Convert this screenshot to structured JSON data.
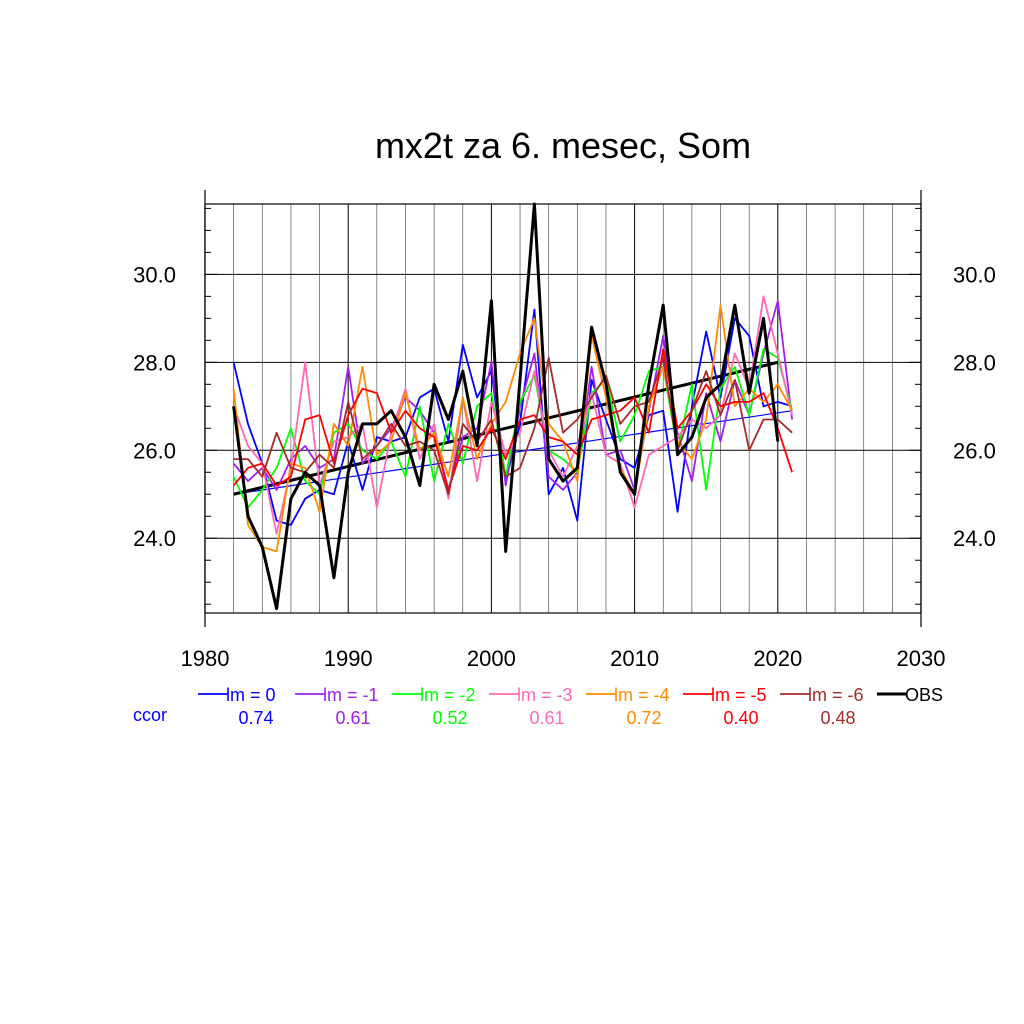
{
  "chart_data": {
    "type": "line",
    "title": "mx2t za 6. mesec, Som",
    "xlabel": "",
    "ylabel": "",
    "xlim": [
      1980,
      2030
    ],
    "ylim": [
      22.3,
      31.6
    ],
    "xticks": [
      "1980",
      "1990",
      "2000",
      "2010",
      "2020",
      "2030"
    ],
    "yticks": [
      "24.0",
      "26.0",
      "28.0",
      "30.0"
    ],
    "grid": true,
    "legend_position": "bottom",
    "ccor_label": "ccor",
    "series": [
      {
        "name": "lm = 0",
        "color": "#0000ff",
        "ccor": "0.74",
        "x": [
          1982,
          1983,
          1984,
          1985,
          1986,
          1987,
          1988,
          1989,
          1990,
          1991,
          1992,
          1993,
          1994,
          1995,
          1996,
          1997,
          1998,
          1999,
          2000,
          2001,
          2002,
          2003,
          2004,
          2005,
          2006,
          2007,
          2008,
          2009,
          2010,
          2011,
          2012,
          2013,
          2014,
          2015,
          2016,
          2017,
          2018,
          2019,
          2020,
          2021
        ],
        "values": [
          28.0,
          26.6,
          25.7,
          24.4,
          24.3,
          24.9,
          25.1,
          25.0,
          26.2,
          25.1,
          26.3,
          26.2,
          26.3,
          27.2,
          27.4,
          26.2,
          28.4,
          27.2,
          27.8,
          25.3,
          26.6,
          29.2,
          25.0,
          25.6,
          24.4,
          27.6,
          26.7,
          25.8,
          25.6,
          26.8,
          26.9,
          24.6,
          27.0,
          28.7,
          27.2,
          29.0,
          28.6,
          27.0,
          27.1,
          27.0
        ]
      },
      {
        "name": "lm = -1",
        "color": "#a020f0",
        "ccor": "0.61",
        "x": [
          1982,
          1983,
          1984,
          1985,
          1986,
          1987,
          1988,
          1989,
          1990,
          1991,
          1992,
          1993,
          1994,
          1995,
          1996,
          1997,
          1998,
          1999,
          2000,
          2001,
          2002,
          2003,
          2004,
          2005,
          2006,
          2007,
          2008,
          2009,
          2010,
          2011,
          2012,
          2013,
          2014,
          2015,
          2016,
          2017,
          2018,
          2019,
          2020,
          2021
        ],
        "values": [
          25.7,
          25.3,
          25.6,
          25.1,
          25.8,
          26.1,
          25.6,
          25.8,
          27.9,
          25.7,
          26.1,
          26.5,
          27.2,
          26.9,
          26.4,
          25.1,
          26.3,
          26.5,
          28.0,
          25.2,
          27.0,
          28.2,
          25.4,
          25.1,
          25.5,
          27.9,
          25.9,
          26.0,
          25.1,
          26.9,
          28.6,
          26.4,
          25.3,
          27.3,
          26.2,
          27.6,
          26.8,
          28.2,
          29.4,
          26.7
        ]
      },
      {
        "name": "lm = -2",
        "color": "#00ff00",
        "ccor": "0.52",
        "x": [
          1982,
          1983,
          1984,
          1985,
          1986,
          1987,
          1988,
          1989,
          1990,
          1991,
          1992,
          1993,
          1994,
          1995,
          1996,
          1997,
          1998,
          1999,
          2000,
          2001,
          2002,
          2003,
          2004,
          2005,
          2006,
          2007,
          2008,
          2009,
          2010,
          2011,
          2012,
          2013,
          2014,
          2015,
          2016,
          2017,
          2018,
          2019,
          2020,
          2021
        ],
        "values": [
          25.4,
          24.7,
          25.1,
          25.6,
          26.5,
          25.3,
          25.0,
          26.4,
          26.6,
          26.0,
          25.8,
          26.2,
          25.4,
          27.0,
          25.3,
          26.6,
          25.7,
          27.0,
          27.3,
          25.4,
          27.1,
          27.7,
          26.0,
          25.8,
          25.5,
          27.3,
          27.6,
          26.2,
          26.8,
          27.8,
          27.9,
          26.0,
          27.5,
          25.1,
          27.4,
          27.9,
          26.8,
          28.3,
          28.1,
          26.9
        ]
      },
      {
        "name": "lm = -3",
        "color": "#ff69b4",
        "ccor": "0.61",
        "x": [
          1982,
          1983,
          1984,
          1985,
          1986,
          1987,
          1988,
          1989,
          1990,
          1991,
          1992,
          1993,
          1994,
          1995,
          1996,
          1997,
          1998,
          1999,
          2000,
          2001,
          2002,
          2003,
          2004,
          2005,
          2006,
          2007,
          2008,
          2009,
          2010,
          2011,
          2012,
          2013,
          2014,
          2015,
          2016,
          2017,
          2018,
          2019,
          2020,
          2021
        ],
        "values": [
          27.0,
          26.1,
          25.7,
          24.1,
          25.6,
          28.0,
          25.2,
          26.2,
          26.3,
          26.6,
          24.7,
          26.4,
          27.4,
          25.8,
          26.6,
          24.9,
          27.2,
          25.3,
          27.1,
          25.9,
          26.4,
          27.8,
          26.0,
          25.4,
          26.1,
          27.3,
          25.9,
          25.7,
          24.7,
          25.9,
          26.1,
          26.3,
          26.7,
          26.5,
          26.8,
          28.2,
          27.4,
          29.5,
          28.2,
          26.8
        ]
      },
      {
        "name": "lm = -4",
        "color": "#ff8c00",
        "ccor": "0.72",
        "x": [
          1982,
          1983,
          1984,
          1985,
          1986,
          1987,
          1988,
          1989,
          1990,
          1991,
          1992,
          1993,
          1994,
          1995,
          1996,
          1997,
          1998,
          1999,
          2000,
          2001,
          2002,
          2003,
          2004,
          2005,
          2006,
          2007,
          2008,
          2009,
          2010,
          2011,
          2012,
          2013,
          2014,
          2015,
          2016,
          2017,
          2018,
          2019,
          2020,
          2021
        ],
        "values": [
          27.4,
          24.3,
          23.8,
          23.7,
          25.7,
          25.6,
          24.6,
          26.6,
          26.1,
          27.9,
          25.9,
          26.2,
          27.3,
          26.0,
          26.4,
          25.4,
          27.2,
          25.8,
          26.6,
          27.1,
          28.2,
          29.0,
          26.6,
          26.2,
          25.3,
          28.6,
          27.2,
          25.6,
          25.0,
          27.0,
          27.9,
          26.2,
          25.8,
          26.7,
          29.3,
          27.0,
          27.4,
          27.1,
          27.5,
          26.9
        ]
      },
      {
        "name": "lm = -5",
        "color": "#ff0000",
        "ccor": "0.40",
        "x": [
          1982,
          1983,
          1984,
          1985,
          1986,
          1987,
          1988,
          1989,
          1990,
          1991,
          1992,
          1993,
          1994,
          1995,
          1996,
          1997,
          1998,
          1999,
          2000,
          2001,
          2002,
          2003,
          2004,
          2005,
          2006,
          2007,
          2008,
          2009,
          2010,
          2011,
          2012,
          2013,
          2014,
          2015,
          2016,
          2017,
          2018,
          2019,
          2020,
          2021
        ],
        "values": [
          25.2,
          25.6,
          25.7,
          25.2,
          25.4,
          26.7,
          26.8,
          25.7,
          26.8,
          27.4,
          27.3,
          26.4,
          26.9,
          26.5,
          26.3,
          25.1,
          26.1,
          26.0,
          26.5,
          25.8,
          26.7,
          26.8,
          26.3,
          26.2,
          25.9,
          26.7,
          26.8,
          26.9,
          27.2,
          26.4,
          28.3,
          26.5,
          26.9,
          27.5,
          27.0,
          27.1,
          27.1,
          27.3,
          26.5,
          25.5
        ]
      },
      {
        "name": "lm = -6",
        "color": "#a52a2a",
        "ccor": "0.48",
        "x": [
          1982,
          1983,
          1984,
          1985,
          1986,
          1987,
          1988,
          1989,
          1990,
          1991,
          1992,
          1993,
          1994,
          1995,
          1996,
          1997,
          1998,
          1999,
          2000,
          2001,
          2002,
          2003,
          2004,
          2005,
          2006,
          2007,
          2008,
          2009,
          2010,
          2011,
          2012,
          2013,
          2014,
          2015,
          2016,
          2017,
          2018,
          2019,
          2020,
          2021
        ],
        "values": [
          25.8,
          25.8,
          25.4,
          26.4,
          25.6,
          25.5,
          25.9,
          25.6,
          27.1,
          25.8,
          26.1,
          26.6,
          26.1,
          26.2,
          26.0,
          25.0,
          26.6,
          26.2,
          26.7,
          25.4,
          25.6,
          26.5,
          28.1,
          26.4,
          26.7,
          27.2,
          27.7,
          26.6,
          27.0,
          27.1,
          28.1,
          26.0,
          26.9,
          27.8,
          26.8,
          27.6,
          26.0,
          26.7,
          26.7,
          26.4
        ]
      },
      {
        "name": "OBS",
        "color": "#000000",
        "ccor": "",
        "x": [
          1982,
          1983,
          1984,
          1985,
          1986,
          1987,
          1988,
          1989,
          1990,
          1991,
          1992,
          1993,
          1994,
          1995,
          1996,
          1997,
          1998,
          1999,
          2000,
          2001,
          2002,
          2003,
          2004,
          2005,
          2006,
          2007,
          2008,
          2009,
          2010,
          2011,
          2012,
          2013,
          2014,
          2015,
          2016,
          2017,
          2018,
          2019,
          2020
        ],
        "values": [
          27.0,
          24.5,
          23.8,
          22.4,
          24.9,
          25.5,
          25.2,
          23.1,
          25.5,
          26.6,
          26.6,
          26.9,
          26.3,
          25.2,
          27.5,
          26.7,
          27.8,
          26.1,
          29.4,
          23.7,
          27.6,
          31.6,
          25.8,
          25.3,
          25.6,
          28.8,
          27.5,
          25.5,
          25.0,
          27.5,
          29.3,
          25.9,
          26.3,
          27.2,
          27.5,
          29.3,
          27.3,
          29.0,
          26.2
        ]
      }
    ],
    "trend_lines": [
      {
        "color": "#0000ff",
        "width": 1.2,
        "x": [
          1982,
          2021
        ],
        "values": [
          25.0,
          26.9
        ]
      },
      {
        "color": "#000000",
        "width": 3,
        "x": [
          1982,
          2020
        ],
        "values": [
          25.0,
          28.0
        ]
      }
    ]
  }
}
